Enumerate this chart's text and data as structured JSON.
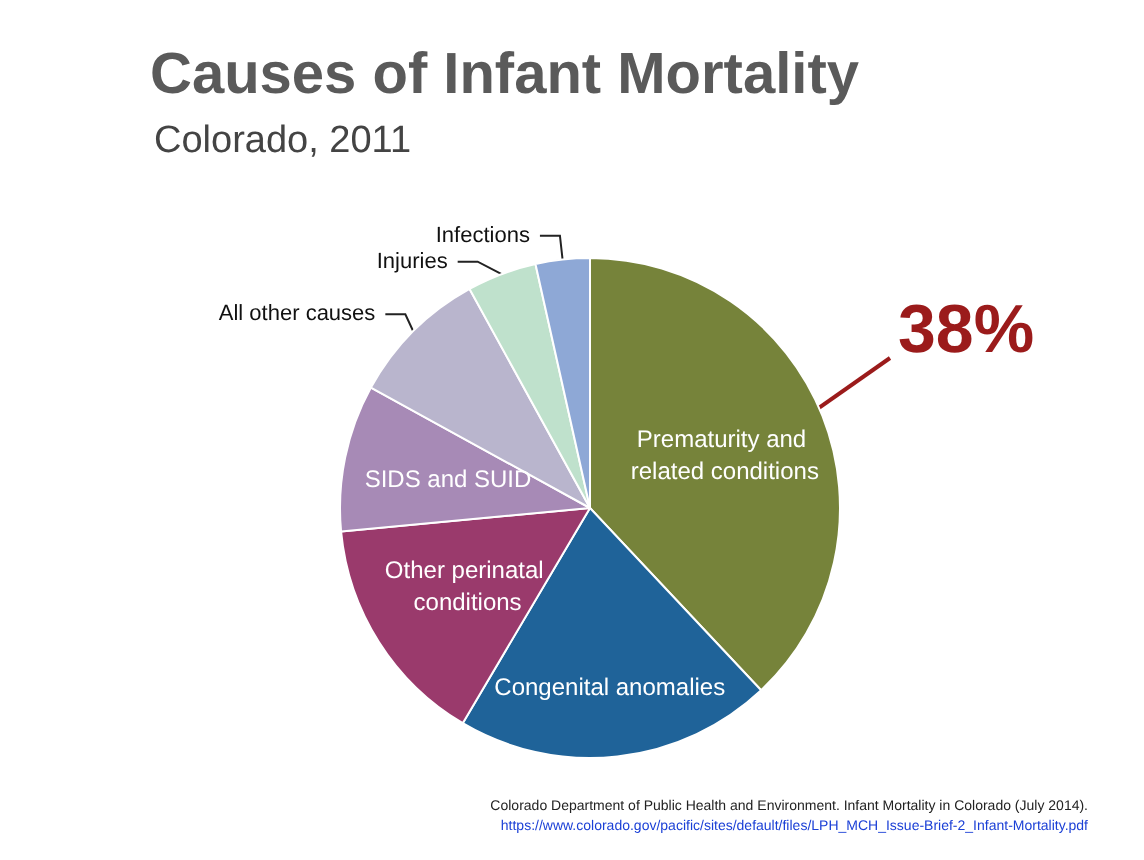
{
  "chart_data": {
    "type": "pie",
    "title": "Causes of Infant Mortality",
    "subtitle": "Colorado, 2011",
    "categories": [
      "Prematurity and related conditions",
      "Congenital anomalies",
      "Other perinatal conditions",
      "SIDS and SUID",
      "All other causes",
      "Injuries",
      "Infections"
    ],
    "values": [
      38,
      20.5,
      15,
      9.5,
      9,
      4.5,
      3.5
    ],
    "colors": [
      "#76833a",
      "#1f6399",
      "#9a3a6c",
      "#a78ab6",
      "#b9b5cd",
      "#bfe1cc",
      "#8ea8d6"
    ],
    "value_labels": [
      "38%",
      null,
      null,
      null,
      null,
      null,
      null
    ],
    "legend": false,
    "annotations": [
      "Colorado Department of Public Health and Environment. Infant Mortality in Colorado (July 2014).",
      "https://www.colorado.gov/pacific/sites/default/files/LPH_MCH_Issue-Brief-2_Infant-Mortality.pdf"
    ]
  }
}
